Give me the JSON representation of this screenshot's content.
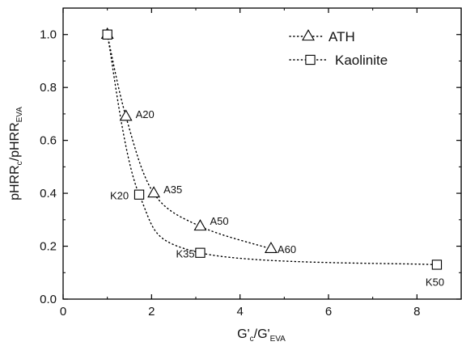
{
  "chart_data": {
    "type": "scatter",
    "xlabel": {
      "base": "G'",
      "sub1": "c",
      "mid": "/G'",
      "sub2": "EVA"
    },
    "ylabel": {
      "base": "pHRR",
      "sub1": "c",
      "mid": "/pHRR",
      "sub2": "EVA"
    },
    "xlim": [
      0,
      9
    ],
    "ylim": [
      0.0,
      1.1
    ],
    "x_ticks": [
      0,
      2,
      4,
      6,
      8
    ],
    "x_tick_labels": [
      "0",
      "2",
      "4",
      "6",
      "8"
    ],
    "y_ticks": [
      0.0,
      0.2,
      0.4,
      0.6,
      0.8,
      1.0
    ],
    "y_tick_labels": [
      "0.0",
      "0.2",
      "0.4",
      "0.6",
      "0.8",
      "1.0"
    ],
    "grid": false,
    "legend_position": "top-right",
    "series": [
      {
        "name": "ATH",
        "marker": "triangle",
        "line_style": "dotted",
        "points": [
          {
            "x": 1.0,
            "y": 1.0,
            "label": ""
          },
          {
            "x": 1.42,
            "y": 0.69,
            "label": "A20"
          },
          {
            "x": 2.05,
            "y": 0.4,
            "label": "A35"
          },
          {
            "x": 3.1,
            "y": 0.275,
            "label": "A50"
          },
          {
            "x": 4.7,
            "y": 0.19,
            "label": "A60"
          }
        ]
      },
      {
        "name": "Kaolinite",
        "marker": "square",
        "line_style": "dotted",
        "points": [
          {
            "x": 1.0,
            "y": 1.0,
            "label": ""
          },
          {
            "x": 1.72,
            "y": 0.395,
            "label": "K20"
          },
          {
            "x": 3.1,
            "y": 0.175,
            "label": "K35"
          },
          {
            "x": 8.45,
            "y": 0.13,
            "label": "K50"
          }
        ]
      }
    ]
  }
}
